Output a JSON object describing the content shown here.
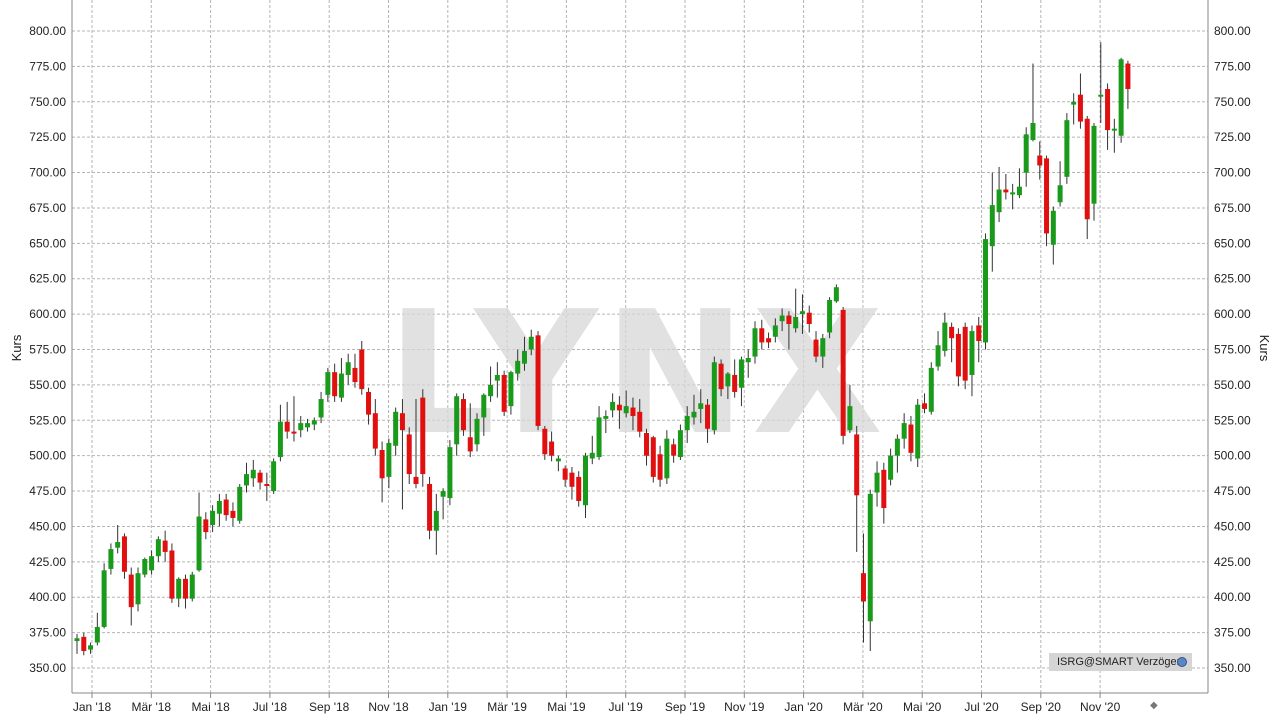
{
  "chart_data": {
    "type": "candlestick",
    "title": "",
    "ylabel_left": "Kurs",
    "ylabel_right": "Kurs",
    "ylim": [
      340,
      810
    ],
    "yticks": [
      "350.00",
      "375.00",
      "400.00",
      "425.00",
      "450.00",
      "475.00",
      "500.00",
      "525.00",
      "550.00",
      "575.00",
      "600.00",
      "625.00",
      "650.00",
      "675.00",
      "700.00",
      "725.00",
      "750.00",
      "775.00",
      "800.00"
    ],
    "x_labels": [
      "Jan '18",
      "Mär '18",
      "Mai '18",
      "Jul '18",
      "Sep '18",
      "Nov '18",
      "Jan '19",
      "Mär '19",
      "Mai '19",
      "Jul '19",
      "Sep '19",
      "Nov '19",
      "Jan '20",
      "Mär '20",
      "Mai '20",
      "Jul '20",
      "Sep '20",
      "Nov '20"
    ],
    "grid": true,
    "up_color": "#1a9a1a",
    "down_color": "#e01010",
    "watermark": "LYNX",
    "source_label": "ISRG@SMART Verzögert",
    "candles": [
      {
        "w": 0,
        "o": 369,
        "c": 371,
        "h": 374,
        "l": 360
      },
      {
        "w": 1,
        "o": 372,
        "c": 362,
        "h": 375,
        "l": 359
      },
      {
        "w": 2,
        "o": 363,
        "c": 366,
        "h": 368,
        "l": 360
      },
      {
        "w": 3,
        "o": 368,
        "c": 379,
        "h": 389,
        "l": 366
      },
      {
        "w": 4,
        "o": 379,
        "c": 419,
        "h": 424,
        "l": 378
      },
      {
        "w": 5,
        "o": 420,
        "c": 434,
        "h": 438,
        "l": 416
      },
      {
        "w": 6,
        "o": 435,
        "c": 439,
        "h": 451,
        "l": 431
      },
      {
        "w": 7,
        "o": 443,
        "c": 418,
        "h": 445,
        "l": 413
      },
      {
        "w": 8,
        "o": 416,
        "c": 393,
        "h": 421,
        "l": 380
      },
      {
        "w": 9,
        "o": 395,
        "c": 417,
        "h": 421,
        "l": 390
      },
      {
        "w": 10,
        "o": 416,
        "c": 427,
        "h": 428,
        "l": 414
      },
      {
        "w": 11,
        "o": 419,
        "c": 429,
        "h": 433,
        "l": 416
      },
      {
        "w": 12,
        "o": 429,
        "c": 441,
        "h": 443,
        "l": 425
      },
      {
        "w": 13,
        "o": 440,
        "c": 432,
        "h": 447,
        "l": 425
      },
      {
        "w": 14,
        "o": 433,
        "c": 399,
        "h": 438,
        "l": 396
      },
      {
        "w": 15,
        "o": 399,
        "c": 413,
        "h": 414,
        "l": 393
      },
      {
        "w": 16,
        "o": 413,
        "c": 399,
        "h": 416,
        "l": 392
      },
      {
        "w": 17,
        "o": 399,
        "c": 416,
        "h": 418,
        "l": 397
      },
      {
        "w": 18,
        "o": 419,
        "c": 457,
        "h": 474,
        "l": 418
      },
      {
        "w": 19,
        "o": 455,
        "c": 446,
        "h": 460,
        "l": 441
      },
      {
        "w": 20,
        "o": 451,
        "c": 461,
        "h": 465,
        "l": 446
      },
      {
        "w": 21,
        "o": 459,
        "c": 468,
        "h": 473,
        "l": 450
      },
      {
        "w": 22,
        "o": 469,
        "c": 458,
        "h": 473,
        "l": 454
      },
      {
        "w": 23,
        "o": 461,
        "c": 456,
        "h": 467,
        "l": 450
      },
      {
        "w": 24,
        "o": 454,
        "c": 478,
        "h": 480,
        "l": 452
      },
      {
        "w": 25,
        "o": 479,
        "c": 487,
        "h": 495,
        "l": 474
      },
      {
        "w": 26,
        "o": 484,
        "c": 490,
        "h": 497,
        "l": 478
      },
      {
        "w": 27,
        "o": 488,
        "c": 481,
        "h": 490,
        "l": 476
      },
      {
        "w": 28,
        "o": 480,
        "c": 479,
        "h": 488,
        "l": 468
      },
      {
        "w": 29,
        "o": 475,
        "c": 496,
        "h": 498,
        "l": 473
      },
      {
        "w": 30,
        "o": 499,
        "c": 524,
        "h": 536,
        "l": 496
      },
      {
        "w": 31,
        "o": 524,
        "c": 517,
        "h": 538,
        "l": 512
      },
      {
        "w": 32,
        "o": 517,
        "c": 516,
        "h": 542,
        "l": 510
      },
      {
        "w": 33,
        "o": 518,
        "c": 523,
        "h": 528,
        "l": 513
      },
      {
        "w": 34,
        "o": 520,
        "c": 523,
        "h": 526,
        "l": 517
      },
      {
        "w": 35,
        "o": 522,
        "c": 525,
        "h": 527,
        "l": 518
      },
      {
        "w": 36,
        "o": 527,
        "c": 540,
        "h": 545,
        "l": 523
      },
      {
        "w": 37,
        "o": 543,
        "c": 559,
        "h": 562,
        "l": 538
      },
      {
        "w": 38,
        "o": 559,
        "c": 542,
        "h": 565,
        "l": 538
      },
      {
        "w": 39,
        "o": 541,
        "c": 558,
        "h": 569,
        "l": 538
      },
      {
        "w": 40,
        "o": 557,
        "c": 566,
        "h": 572,
        "l": 550
      },
      {
        "w": 41,
        "o": 562,
        "c": 552,
        "h": 572,
        "l": 548
      },
      {
        "w": 42,
        "o": 575,
        "c": 547,
        "h": 581,
        "l": 543
      },
      {
        "w": 43,
        "o": 545,
        "c": 529,
        "h": 548,
        "l": 522
      },
      {
        "w": 44,
        "o": 530,
        "c": 505,
        "h": 540,
        "l": 500
      },
      {
        "w": 45,
        "o": 504,
        "c": 484,
        "h": 510,
        "l": 467
      },
      {
        "w": 46,
        "o": 485,
        "c": 509,
        "h": 512,
        "l": 477
      },
      {
        "w": 47,
        "o": 507,
        "c": 531,
        "h": 534,
        "l": 500
      },
      {
        "w": 48,
        "o": 530,
        "c": 518,
        "h": 540,
        "l": 462
      },
      {
        "w": 49,
        "o": 515,
        "c": 487,
        "h": 520,
        "l": 480
      },
      {
        "w": 50,
        "o": 485,
        "c": 480,
        "h": 540,
        "l": 477
      },
      {
        "w": 51,
        "o": 541,
        "c": 487,
        "h": 547,
        "l": 478
      },
      {
        "w": 52,
        "o": 480,
        "c": 447,
        "h": 485,
        "l": 441
      },
      {
        "w": 53,
        "o": 447,
        "c": 461,
        "h": 473,
        "l": 430
      },
      {
        "w": 54,
        "o": 471,
        "c": 475,
        "h": 477,
        "l": 455
      },
      {
        "w": 55,
        "o": 470,
        "c": 506,
        "h": 511,
        "l": 465
      },
      {
        "w": 56,
        "o": 508,
        "c": 542,
        "h": 544,
        "l": 500
      },
      {
        "w": 57,
        "o": 540,
        "c": 518,
        "h": 544,
        "l": 514
      },
      {
        "w": 58,
        "o": 513,
        "c": 503,
        "h": 537,
        "l": 499
      },
      {
        "w": 59,
        "o": 508,
        "c": 526,
        "h": 530,
        "l": 503
      },
      {
        "w": 60,
        "o": 527,
        "c": 543,
        "h": 544,
        "l": 514
      },
      {
        "w": 61,
        "o": 542,
        "c": 550,
        "h": 563,
        "l": 538
      },
      {
        "w": 62,
        "o": 553,
        "c": 557,
        "h": 566,
        "l": 541
      },
      {
        "w": 63,
        "o": 557,
        "c": 531,
        "h": 560,
        "l": 528
      },
      {
        "w": 64,
        "o": 535,
        "c": 559,
        "h": 560,
        "l": 529
      },
      {
        "w": 65,
        "o": 558,
        "c": 567,
        "h": 575,
        "l": 553
      },
      {
        "w": 66,
        "o": 565,
        "c": 574,
        "h": 584,
        "l": 560
      },
      {
        "w": 67,
        "o": 575,
        "c": 584,
        "h": 589,
        "l": 571
      },
      {
        "w": 68,
        "o": 585,
        "c": 521,
        "h": 588,
        "l": 518
      },
      {
        "w": 69,
        "o": 519,
        "c": 501,
        "h": 521,
        "l": 497
      },
      {
        "w": 70,
        "o": 510,
        "c": 500,
        "h": 517,
        "l": 496
      },
      {
        "w": 71,
        "o": 496,
        "c": 498,
        "h": 500,
        "l": 489
      },
      {
        "w": 72,
        "o": 491,
        "c": 483,
        "h": 493,
        "l": 478
      },
      {
        "w": 73,
        "o": 488,
        "c": 478,
        "h": 492,
        "l": 469
      },
      {
        "w": 74,
        "o": 485,
        "c": 468,
        "h": 489,
        "l": 464
      },
      {
        "w": 75,
        "o": 465,
        "c": 500,
        "h": 502,
        "l": 456
      },
      {
        "w": 76,
        "o": 498,
        "c": 502,
        "h": 514,
        "l": 494
      },
      {
        "w": 77,
        "o": 499,
        "c": 527,
        "h": 535,
        "l": 497
      },
      {
        "w": 78,
        "o": 526,
        "c": 528,
        "h": 532,
        "l": 516
      },
      {
        "w": 79,
        "o": 532,
        "c": 538,
        "h": 544,
        "l": 527
      },
      {
        "w": 80,
        "o": 536,
        "c": 532,
        "h": 542,
        "l": 519
      },
      {
        "w": 81,
        "o": 530,
        "c": 535,
        "h": 546,
        "l": 527
      },
      {
        "w": 82,
        "o": 534,
        "c": 528,
        "h": 541,
        "l": 518
      },
      {
        "w": 83,
        "o": 531,
        "c": 517,
        "h": 540,
        "l": 513
      },
      {
        "w": 84,
        "o": 516,
        "c": 500,
        "h": 519,
        "l": 493
      },
      {
        "w": 85,
        "o": 513,
        "c": 485,
        "h": 514,
        "l": 481
      },
      {
        "w": 86,
        "o": 501,
        "c": 483,
        "h": 507,
        "l": 478
      },
      {
        "w": 87,
        "o": 484,
        "c": 512,
        "h": 518,
        "l": 480
      },
      {
        "w": 88,
        "o": 508,
        "c": 500,
        "h": 512,
        "l": 495
      },
      {
        "w": 89,
        "o": 499,
        "c": 518,
        "h": 522,
        "l": 497
      },
      {
        "w": 90,
        "o": 518,
        "c": 528,
        "h": 535,
        "l": 509
      },
      {
        "w": 91,
        "o": 527,
        "c": 531,
        "h": 543,
        "l": 522
      },
      {
        "w": 92,
        "o": 533,
        "c": 537,
        "h": 547,
        "l": 523
      },
      {
        "w": 93,
        "o": 536,
        "c": 519,
        "h": 540,
        "l": 509
      },
      {
        "w": 94,
        "o": 518,
        "c": 566,
        "h": 570,
        "l": 515
      },
      {
        "w": 95,
        "o": 565,
        "c": 547,
        "h": 568,
        "l": 542
      },
      {
        "w": 96,
        "o": 549,
        "c": 558,
        "h": 559,
        "l": 540
      },
      {
        "w": 97,
        "o": 557,
        "c": 545,
        "h": 568,
        "l": 541
      },
      {
        "w": 98,
        "o": 548,
        "c": 568,
        "h": 570,
        "l": 535
      },
      {
        "w": 99,
        "o": 566,
        "c": 569,
        "h": 575,
        "l": 555
      },
      {
        "w": 100,
        "o": 570,
        "c": 590,
        "h": 595,
        "l": 565
      },
      {
        "w": 101,
        "o": 590,
        "c": 580,
        "h": 596,
        "l": 575
      },
      {
        "w": 102,
        "o": 583,
        "c": 580,
        "h": 587,
        "l": 576
      },
      {
        "w": 103,
        "o": 584,
        "c": 592,
        "h": 597,
        "l": 580
      },
      {
        "w": 104,
        "o": 595,
        "c": 599,
        "h": 604,
        "l": 588
      },
      {
        "w": 105,
        "o": 599,
        "c": 593,
        "h": 602,
        "l": 575
      },
      {
        "w": 106,
        "o": 590,
        "c": 598,
        "h": 618,
        "l": 587
      },
      {
        "w": 107,
        "o": 600,
        "c": 602,
        "h": 614,
        "l": 586
      },
      {
        "w": 108,
        "o": 601,
        "c": 593,
        "h": 606,
        "l": 587
      },
      {
        "w": 109,
        "o": 582,
        "c": 570,
        "h": 588,
        "l": 566
      },
      {
        "w": 110,
        "o": 570,
        "c": 583,
        "h": 586,
        "l": 562
      },
      {
        "w": 111,
        "o": 587,
        "c": 610,
        "h": 612,
        "l": 583
      },
      {
        "w": 112,
        "o": 609,
        "c": 619,
        "h": 621,
        "l": 608
      },
      {
        "w": 113,
        "o": 603,
        "c": 514,
        "h": 605,
        "l": 508
      },
      {
        "w": 114,
        "o": 518,
        "c": 535,
        "h": 550,
        "l": 516
      },
      {
        "w": 115,
        "o": 515,
        "c": 472,
        "h": 521,
        "l": 432
      },
      {
        "w": 116,
        "o": 417,
        "c": 397,
        "h": 445,
        "l": 368
      },
      {
        "w": 117,
        "o": 383,
        "c": 473,
        "h": 476,
        "l": 362
      },
      {
        "w": 118,
        "o": 474,
        "c": 488,
        "h": 496,
        "l": 464
      },
      {
        "w": 119,
        "o": 490,
        "c": 463,
        "h": 495,
        "l": 452
      },
      {
        "w": 120,
        "o": 483,
        "c": 500,
        "h": 505,
        "l": 479
      },
      {
        "w": 121,
        "o": 500,
        "c": 512,
        "h": 515,
        "l": 488
      },
      {
        "w": 122,
        "o": 512,
        "c": 523,
        "h": 530,
        "l": 505
      },
      {
        "w": 123,
        "o": 522,
        "c": 502,
        "h": 528,
        "l": 496
      },
      {
        "w": 124,
        "o": 498,
        "c": 536,
        "h": 540,
        "l": 492
      },
      {
        "w": 125,
        "o": 537,
        "c": 533,
        "h": 544,
        "l": 530
      },
      {
        "w": 126,
        "o": 531,
        "c": 562,
        "h": 566,
        "l": 529
      },
      {
        "w": 127,
        "o": 563,
        "c": 578,
        "h": 588,
        "l": 560
      },
      {
        "w": 128,
        "o": 574,
        "c": 594,
        "h": 601,
        "l": 570
      },
      {
        "w": 129,
        "o": 591,
        "c": 583,
        "h": 594,
        "l": 566
      },
      {
        "w": 130,
        "o": 586,
        "c": 556,
        "h": 590,
        "l": 549
      },
      {
        "w": 131,
        "o": 591,
        "c": 553,
        "h": 594,
        "l": 547
      },
      {
        "w": 132,
        "o": 557,
        "c": 588,
        "h": 592,
        "l": 542
      },
      {
        "w": 133,
        "o": 592,
        "c": 581,
        "h": 598,
        "l": 566
      },
      {
        "w": 134,
        "o": 580,
        "c": 653,
        "h": 657,
        "l": 575
      },
      {
        "w": 135,
        "o": 648,
        "c": 677,
        "h": 700,
        "l": 630
      },
      {
        "w": 136,
        "o": 672,
        "c": 688,
        "h": 704,
        "l": 665
      },
      {
        "w": 137,
        "o": 688,
        "c": 686,
        "h": 699,
        "l": 681
      },
      {
        "w": 138,
        "o": 685,
        "c": 686,
        "h": 692,
        "l": 674
      },
      {
        "w": 139,
        "o": 684,
        "c": 690,
        "h": 703,
        "l": 682
      },
      {
        "w": 140,
        "o": 700,
        "c": 727,
        "h": 732,
        "l": 690
      },
      {
        "w": 141,
        "o": 723,
        "c": 735,
        "h": 777,
        "l": 722
      },
      {
        "w": 142,
        "o": 712,
        "c": 705,
        "h": 722,
        "l": 695
      },
      {
        "w": 143,
        "o": 710,
        "c": 657,
        "h": 712,
        "l": 648
      },
      {
        "w": 144,
        "o": 649,
        "c": 673,
        "h": 676,
        "l": 635
      },
      {
        "w": 145,
        "o": 679,
        "c": 691,
        "h": 708,
        "l": 676
      },
      {
        "w": 146,
        "o": 697,
        "c": 737,
        "h": 742,
        "l": 692
      },
      {
        "w": 147,
        "o": 748,
        "c": 750,
        "h": 756,
        "l": 734
      },
      {
        "w": 148,
        "o": 755,
        "c": 736,
        "h": 770,
        "l": 731
      },
      {
        "w": 149,
        "o": 738,
        "c": 667,
        "h": 740,
        "l": 653
      },
      {
        "w": 150,
        "o": 678,
        "c": 733,
        "h": 735,
        "l": 666
      },
      {
        "w": 151,
        "o": 754,
        "c": 755,
        "h": 792,
        "l": 735
      },
      {
        "w": 152,
        "o": 759,
        "c": 730,
        "h": 763,
        "l": 716
      },
      {
        "w": 153,
        "o": 731,
        "c": 731,
        "h": 738,
        "l": 714
      },
      {
        "w": 154,
        "o": 726,
        "c": 780,
        "h": 781,
        "l": 721
      },
      {
        "w": 155,
        "o": 777,
        "c": 759,
        "h": 779,
        "l": 745
      }
    ]
  }
}
